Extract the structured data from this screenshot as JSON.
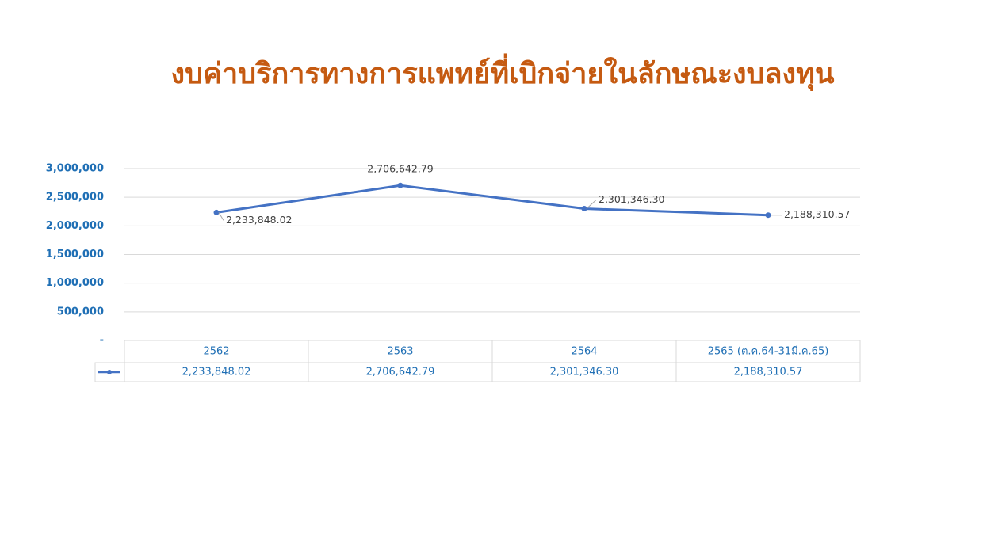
{
  "chart_data": {
    "type": "line",
    "title": "งบค่าบริการทางการแพทย์ที่เบิกจ่ายในลักษณะงบลงทุน",
    "categories": [
      "2562",
      "2563",
      "2564",
      "2565 (ต.ค.64-31มี.ค.65)"
    ],
    "values": [
      2233848.02,
      2706642.79,
      2301346.3,
      2188310.57
    ],
    "value_labels": [
      "2,233,848.02",
      "2,706,642.79",
      "2,301,346.30",
      "2,188,310.57"
    ],
    "color": "#4472c4",
    "ylim": [
      0,
      3000000
    ],
    "yticks": [
      {
        "value": 0,
        "label": "-"
      },
      {
        "value": 500000,
        "label": "500,000"
      },
      {
        "value": 1000000,
        "label": "1,000,000"
      },
      {
        "value": 1500000,
        "label": "1,500,000"
      },
      {
        "value": 2000000,
        "label": "2,000,000"
      },
      {
        "value": 2500000,
        "label": "2,500,000"
      },
      {
        "value": 3000000,
        "label": "3,000,000"
      }
    ],
    "grid": true
  }
}
